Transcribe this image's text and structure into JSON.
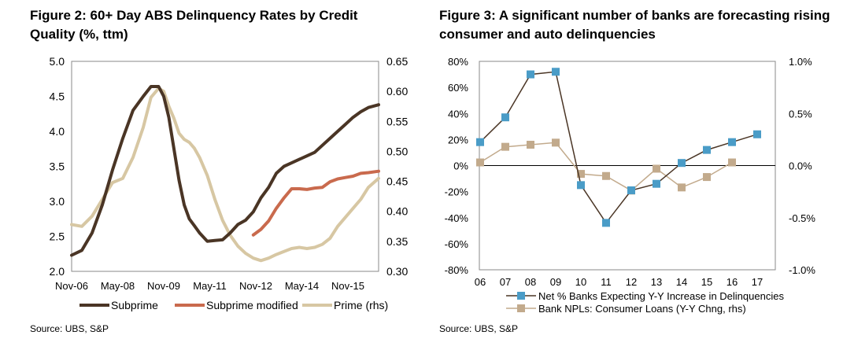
{
  "figure1": {
    "title": "Figure 2: 60+ Day ABS Delinquency Rates by Credit Quality (%, ttm)",
    "source": "Source:  UBS, S&P"
  },
  "figure2": {
    "title": "Figure 3: A significant number of banks are forecasting rising consumer and auto delinquencies",
    "source": "Source:  UBS, S&P"
  },
  "chart_data": [
    {
      "type": "line",
      "title": "Figure 2: 60+ Day ABS Delinquency Rates by Credit Quality (%, ttm)",
      "x_tick_labels": [
        "Nov-06",
        "May-08",
        "Nov-09",
        "May-11",
        "Nov-12",
        "May-14",
        "Nov-15"
      ],
      "x_range": [
        "2006-11",
        "2016-11"
      ],
      "y_left_ticks": [
        "2.0",
        "2.5",
        "3.0",
        "3.5",
        "4.0",
        "4.5",
        "5.0"
      ],
      "y_left_range": [
        2.0,
        5.0
      ],
      "y_right_ticks": [
        "0.30",
        "0.35",
        "0.40",
        "0.45",
        "0.50",
        "0.55",
        "0.60",
        "0.65"
      ],
      "y_right_range": [
        0.3,
        0.65
      ],
      "legend_position": "bottom",
      "grid": false,
      "series": [
        {
          "name": "Subprime",
          "axis": "left",
          "color": "#4a3525",
          "x": [
            "2006-11",
            "2007-03",
            "2007-07",
            "2007-11",
            "2008-03",
            "2008-07",
            "2008-11",
            "2009-03",
            "2009-06",
            "2009-09",
            "2009-11",
            "2010-01",
            "2010-03",
            "2010-05",
            "2010-07",
            "2010-09",
            "2010-11",
            "2011-01",
            "2011-04",
            "2011-07",
            "2011-10",
            "2012-01",
            "2012-04",
            "2012-07",
            "2012-10",
            "2013-01",
            "2013-04",
            "2013-07",
            "2013-10",
            "2014-01",
            "2014-04",
            "2014-07",
            "2014-10",
            "2015-01",
            "2015-04",
            "2015-07",
            "2015-10",
            "2016-01",
            "2016-04",
            "2016-07",
            "2016-11"
          ],
          "y": [
            2.23,
            2.3,
            2.55,
            2.95,
            3.45,
            3.9,
            4.3,
            4.5,
            4.64,
            4.64,
            4.5,
            4.2,
            3.75,
            3.3,
            2.95,
            2.75,
            2.65,
            2.55,
            2.43,
            2.44,
            2.45,
            2.55,
            2.67,
            2.73,
            2.85,
            3.05,
            3.2,
            3.4,
            3.5,
            3.55,
            3.6,
            3.65,
            3.7,
            3.8,
            3.9,
            4.0,
            4.1,
            4.2,
            4.28,
            4.34,
            4.38
          ]
        },
        {
          "name": "Subprime modified",
          "axis": "left",
          "color": "#c96a4d",
          "x": [
            "2012-10",
            "2013-01",
            "2013-04",
            "2013-07",
            "2013-10",
            "2014-01",
            "2014-04",
            "2014-07",
            "2014-10",
            "2015-01",
            "2015-04",
            "2015-07",
            "2015-10",
            "2016-01",
            "2016-04",
            "2016-07",
            "2016-11"
          ],
          "y": [
            2.52,
            2.6,
            2.72,
            2.9,
            3.05,
            3.18,
            3.18,
            3.17,
            3.19,
            3.2,
            3.28,
            3.32,
            3.34,
            3.36,
            3.4,
            3.41,
            3.43
          ]
        },
        {
          "name": "Prime (rhs)",
          "axis": "right",
          "color": "#d7c7a3",
          "x": [
            "2006-11",
            "2007-03",
            "2007-07",
            "2007-11",
            "2008-03",
            "2008-07",
            "2008-11",
            "2009-03",
            "2009-06",
            "2009-09",
            "2009-11",
            "2010-01",
            "2010-03",
            "2010-05",
            "2010-07",
            "2010-09",
            "2010-11",
            "2011-01",
            "2011-04",
            "2011-07",
            "2011-10",
            "2012-01",
            "2012-04",
            "2012-07",
            "2012-10",
            "2013-01",
            "2013-04",
            "2013-07",
            "2013-10",
            "2014-01",
            "2014-04",
            "2014-07",
            "2014-10",
            "2015-01",
            "2015-04",
            "2015-07",
            "2015-10",
            "2016-01",
            "2016-04",
            "2016-07",
            "2016-11"
          ],
          "y": [
            0.378,
            0.375,
            0.392,
            0.42,
            0.448,
            0.455,
            0.49,
            0.54,
            0.59,
            0.605,
            0.6,
            0.575,
            0.555,
            0.53,
            0.52,
            0.515,
            0.505,
            0.49,
            0.46,
            0.42,
            0.385,
            0.36,
            0.342,
            0.33,
            0.322,
            0.318,
            0.322,
            0.328,
            0.333,
            0.338,
            0.34,
            0.338,
            0.34,
            0.345,
            0.355,
            0.375,
            0.39,
            0.405,
            0.42,
            0.44,
            0.455
          ]
        }
      ]
    },
    {
      "type": "line",
      "title": "Figure 3: A significant number of banks are forecasting rising consumer and auto delinquencies",
      "categories": [
        "06",
        "07",
        "08",
        "09",
        "10",
        "11",
        "12",
        "13",
        "14",
        "15",
        "16",
        "17"
      ],
      "y_left_ticks": [
        "-80%",
        "-60%",
        "-40%",
        "-20%",
        "0%",
        "20%",
        "40%",
        "60%",
        "80%"
      ],
      "y_left_range": [
        -80,
        80
      ],
      "y_right_ticks": [
        "-1.0%",
        "-0.5%",
        "0.0%",
        "0.5%",
        "1.0%"
      ],
      "y_right_range": [
        -1.0,
        1.0
      ],
      "legend_position": "bottom",
      "grid": false,
      "series": [
        {
          "name": "Net % Banks Expecting Y-Y Increase in Delinquencies",
          "axis": "left",
          "color": "#4a9cc7",
          "line_color": "#4a3525",
          "values": [
            18,
            37,
            70,
            72,
            -15,
            -44,
            -19,
            -14,
            2,
            12,
            18,
            24
          ]
        },
        {
          "name": "Bank NPLs: Consumer Loans (Y-Y Chng, rhs)",
          "axis": "right",
          "color": "#c2aa8c",
          "line_color": "#c2aa8c",
          "values": [
            0.03,
            0.18,
            0.2,
            0.22,
            -0.08,
            -0.1,
            -0.24,
            -0.03,
            -0.21,
            -0.11,
            0.03,
            null
          ]
        }
      ]
    }
  ]
}
